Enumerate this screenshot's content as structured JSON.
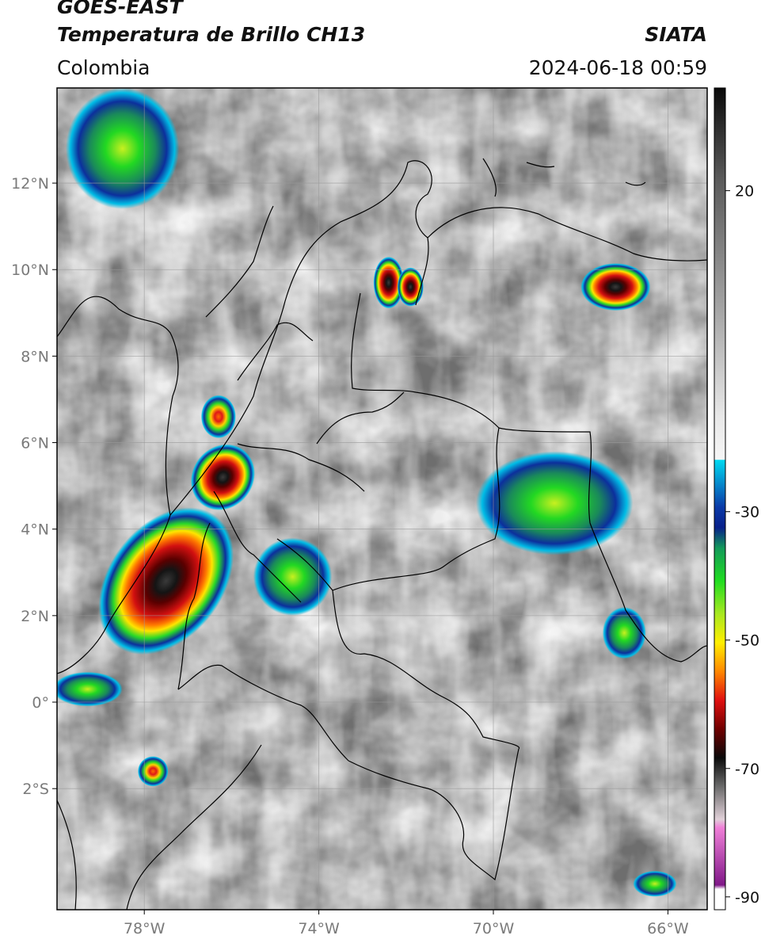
{
  "header": {
    "satellite": "GOES-EAST",
    "product": "Temperatura de Brillo CH13",
    "region": "Colombia",
    "agency": "SIATA",
    "timestamp": "2024-06-18 00:59"
  },
  "map": {
    "lon_range": [
      -80,
      -65.1
    ],
    "lat_range": [
      -4.8,
      14.2
    ],
    "lat_ticks": [
      {
        "lat": 12,
        "label": "12°N"
      },
      {
        "lat": 10,
        "label": "10°N"
      },
      {
        "lat": 8,
        "label": "8°N"
      },
      {
        "lat": 6,
        "label": "6°N"
      },
      {
        "lat": 4,
        "label": "4°N"
      },
      {
        "lat": 2,
        "label": "2°N"
      },
      {
        "lat": 0,
        "label": "0°"
      },
      {
        "lat": -2,
        "label": "2°S"
      }
    ],
    "lon_ticks": [
      {
        "lon": -78,
        "label": "78°W"
      },
      {
        "lon": -74,
        "label": "74°W"
      },
      {
        "lon": -70,
        "label": "70°W"
      },
      {
        "lon": -66,
        "label": "66°W"
      }
    ],
    "storms": [
      {
        "lon": -77.5,
        "lat": 2.8,
        "rlon": 1.3,
        "rlat": 1.9,
        "min_temp": -72
      },
      {
        "lon": -76.2,
        "lat": 5.2,
        "rlon": 0.7,
        "rlat": 0.8,
        "min_temp": -70
      },
      {
        "lon": -76.3,
        "lat": 6.6,
        "rlon": 0.4,
        "rlat": 0.5,
        "min_temp": -58
      },
      {
        "lon": -72.4,
        "lat": 9.7,
        "rlon": 0.35,
        "rlat": 0.6,
        "min_temp": -72
      },
      {
        "lon": -71.9,
        "lat": 9.6,
        "rlon": 0.3,
        "rlat": 0.45,
        "min_temp": -70
      },
      {
        "lon": -67.2,
        "lat": 9.6,
        "rlon": 0.8,
        "rlat": 0.55,
        "min_temp": -74
      },
      {
        "lon": -68.6,
        "lat": 4.6,
        "rlon": 1.8,
        "rlat": 1.2,
        "min_temp": -38
      },
      {
        "lon": -74.6,
        "lat": 2.9,
        "rlon": 0.9,
        "rlat": 0.9,
        "min_temp": -48
      },
      {
        "lon": -77.8,
        "lat": -1.6,
        "rlon": 0.35,
        "rlat": 0.35,
        "min_temp": -60
      },
      {
        "lon": -78.5,
        "lat": 12.8,
        "rlon": 1.3,
        "rlat": 1.4,
        "min_temp": -42
      },
      {
        "lon": -67.0,
        "lat": 1.6,
        "rlon": 0.5,
        "rlat": 0.6,
        "min_temp": -40
      },
      {
        "lon": -66.3,
        "lat": -4.2,
        "rlon": 0.5,
        "rlat": 0.3,
        "min_temp": -40
      },
      {
        "lon": -79.3,
        "lat": 0.3,
        "rlon": 0.8,
        "rlat": 0.4,
        "min_temp": -40
      }
    ]
  },
  "colorbar": {
    "range": [
      -92,
      36
    ],
    "ticks": [
      {
        "value": 20,
        "label": "20"
      },
      {
        "value": -30,
        "label": "-30"
      },
      {
        "value": -50,
        "label": "-50"
      },
      {
        "value": -70,
        "label": "-70"
      },
      {
        "value": -90,
        "label": "-90"
      }
    ],
    "colors": {
      "warm_dark": "#3a3a3a",
      "warm_light": "#f4f4f4",
      "cyan": "#00c8e8",
      "blue": "#0a2a9a",
      "green": "#22dd22",
      "yellow": "#ffee00",
      "red": "#e01010",
      "black": "#0a0a0a",
      "magenta": "#e040c0",
      "purple": "#801888"
    }
  }
}
